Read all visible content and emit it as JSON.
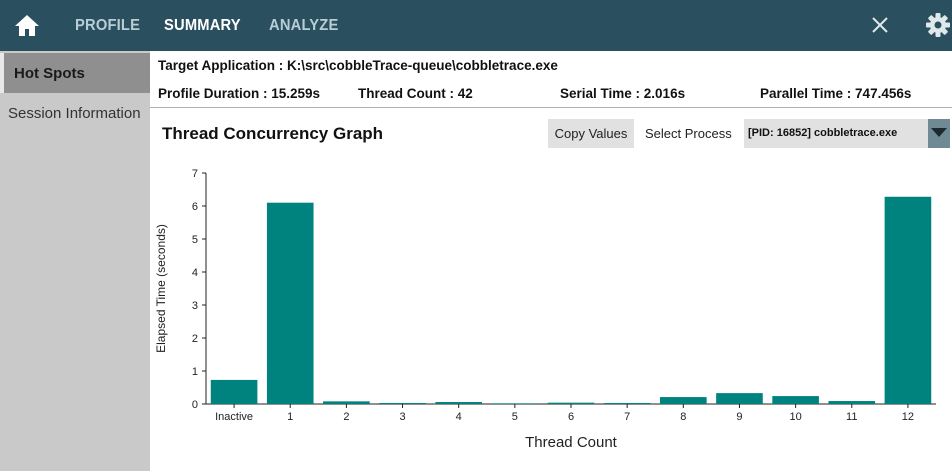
{
  "nav": {
    "home_icon": "home-icon",
    "items": [
      "PROFILE",
      "SUMMARY",
      "ANALYZE"
    ],
    "active": "SUMMARY",
    "close_icon": "close-icon",
    "settings_icon": "gear-icon"
  },
  "sidebar": {
    "items": [
      {
        "label": "Hot Spots",
        "active": true
      },
      {
        "label": "Session Information",
        "active": false
      }
    ]
  },
  "info": {
    "target_application": "Target Application : K:\\src\\cobbleTrace-queue\\cobbletrace.exe",
    "profile_duration": "Profile Duration : 15.259s",
    "thread_count": "Thread Count : 42",
    "serial_time": "Serial Time : 2.016s",
    "parallel_time": "Parallel Time : 747.456s"
  },
  "graph": {
    "title": "Thread Concurrency Graph",
    "copy_button": "Copy Values",
    "select_label": "Select Process",
    "selected_process": "[PID: 16852] cobbletrace.exe"
  },
  "colors": {
    "topbar": "#2a4f5f",
    "bar": "#00827f",
    "sidebar": "#c9c9c9"
  },
  "chart_data": {
    "type": "bar",
    "categories": [
      "Inactive",
      "1",
      "2",
      "3",
      "4",
      "5",
      "6",
      "7",
      "8",
      "9",
      "10",
      "11",
      "12"
    ],
    "values": [
      0.73,
      6.1,
      0.08,
      0.03,
      0.06,
      0.02,
      0.04,
      0.03,
      0.21,
      0.33,
      0.24,
      0.09,
      6.28
    ],
    "xlabel": "Thread Count",
    "ylabel": "Elapsed Time (seconds)",
    "ylim": [
      0,
      7
    ],
    "yticks": [
      "0",
      "1",
      "2",
      "3",
      "4",
      "5",
      "6",
      "7"
    ],
    "grid": false,
    "legend": "none"
  }
}
